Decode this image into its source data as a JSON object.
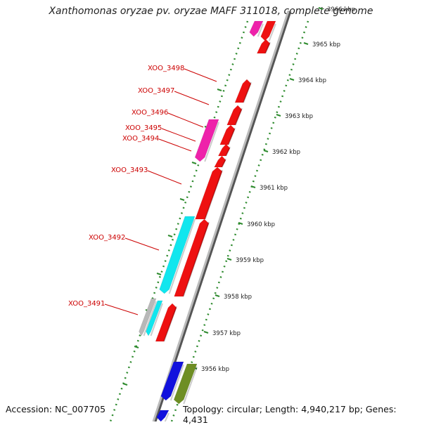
{
  "title": "Xanthomonas oryzae pv. oryzae MAFF 311018, complete genome",
  "accession": "Accession: NC_007705",
  "summary": "Topology: circular; Length: 4,940,217 bp; Genes: 4,431",
  "colors": {
    "backbone": "#8a8a8a",
    "tick": "#2e8b2e",
    "gene_label": "#cc0000",
    "red": "#ee1111",
    "magenta": "#ee22aa",
    "cyan": "#11e6ee",
    "blue": "#1111dd",
    "olive": "#6e8e24",
    "gray": "#b8b8b8"
  },
  "kbp_labels": [
    "3966 kbp",
    "3965 kbp",
    "3964 kbp",
    "3963 kbp",
    "3962 kbp",
    "3961 kbp",
    "3960 kbp",
    "3959 kbp",
    "3958 kbp",
    "3957 kbp",
    "3956 kbp"
  ],
  "gene_labels": [
    "XOO_3498",
    "XOO_3497",
    "XOO_3496",
    "XOO_3495",
    "XOO_3494",
    "XOO_3493",
    "XOO_3492",
    "XOO_3491"
  ]
}
